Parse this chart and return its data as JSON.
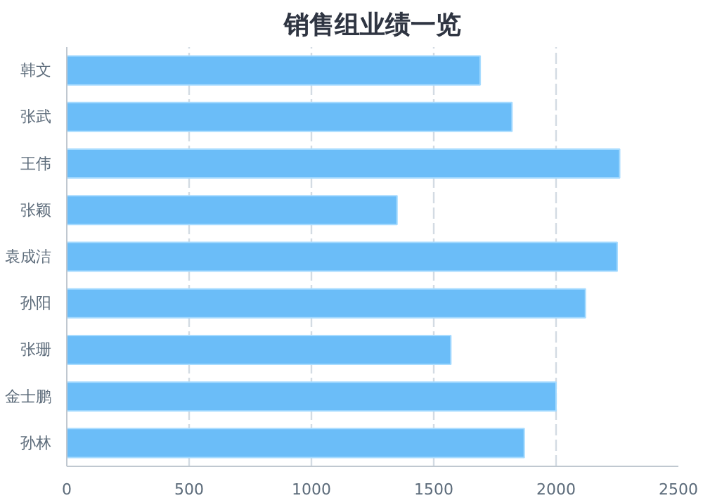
{
  "chart_data": {
    "type": "bar",
    "orientation": "horizontal",
    "title": "销售组业绩一览",
    "categories": [
      "韩文",
      "张武",
      "王伟",
      "张颖",
      "袁成洁",
      "孙阳",
      "张珊",
      "金士鹏",
      "孙林"
    ],
    "values": [
      1690,
      1820,
      2260,
      1350,
      2250,
      2120,
      1570,
      2000,
      1870
    ],
    "color": "#6bbdf8",
    "xlim": [
      0,
      2500
    ],
    "xticks": [
      0,
      500,
      1000,
      1500,
      2000,
      2500
    ],
    "grid": "x"
  }
}
